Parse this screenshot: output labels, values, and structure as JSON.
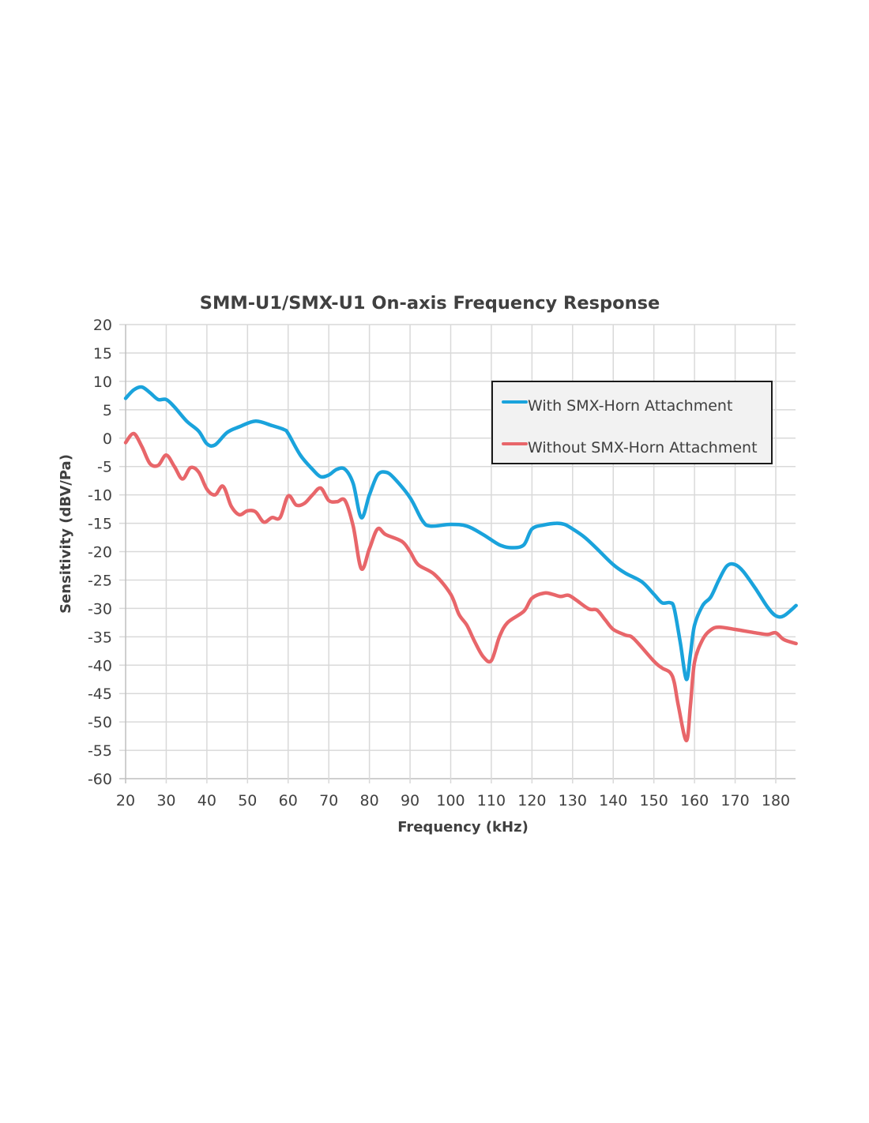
{
  "chart_data": {
    "type": "line",
    "title": "SMM-U1/SMX-U1  On-axis Frequency Response",
    "xlabel": "Frequency (kHz)",
    "ylabel": "Sensitivity (dBV/Pa)",
    "xlim": [
      20,
      185
    ],
    "ylim": [
      -60,
      20
    ],
    "xticks": [
      20,
      30,
      40,
      50,
      60,
      70,
      80,
      90,
      100,
      110,
      120,
      130,
      140,
      150,
      160,
      170,
      180
    ],
    "yticks": [
      20,
      15,
      10,
      5,
      0,
      -5,
      -10,
      -15,
      -20,
      -25,
      -30,
      -35,
      -40,
      -45,
      -50,
      -55,
      -60
    ],
    "grid": true,
    "legend_position": "top-right",
    "series": [
      {
        "name": "With SMX-Horn Attachment",
        "color": "#1aa3dc",
        "x": [
          20,
          22,
          24,
          26,
          28,
          30,
          32,
          35,
          38,
          40,
          42,
          45,
          48,
          52,
          56,
          59,
          60,
          63,
          66,
          68,
          70,
          72,
          74,
          76,
          78,
          80,
          82,
          84,
          86,
          90,
          93,
          95,
          100,
          104,
          108,
          112,
          115,
          118,
          120,
          123,
          126,
          128,
          130,
          133,
          136,
          140,
          143,
          147,
          150,
          152,
          154,
          155,
          156.5,
          158,
          159,
          160,
          162,
          164,
          166,
          168,
          170,
          172,
          175,
          178,
          180,
          182,
          185
        ],
        "y": [
          7,
          8.5,
          9,
          8,
          6.8,
          6.8,
          5.5,
          3,
          1.2,
          -1,
          -1.2,
          1,
          2,
          3,
          2.2,
          1.5,
          0.8,
          -3,
          -5.5,
          -6.8,
          -6.5,
          -5.5,
          -5.5,
          -8,
          -14,
          -10,
          -6.5,
          -6,
          -7,
          -10.5,
          -14.5,
          -15.5,
          -15.2,
          -15.5,
          -17,
          -18.8,
          -19.3,
          -18.8,
          -16,
          -15.3,
          -15,
          -15.2,
          -16,
          -17.5,
          -19.5,
          -22.3,
          -23.8,
          -25.3,
          -27.5,
          -29,
          -29,
          -30,
          -36,
          -42.5,
          -38,
          -33,
          -29.5,
          -28,
          -25,
          -22.5,
          -22.3,
          -23.5,
          -26.5,
          -29.8,
          -31.3,
          -31.3,
          -29.5
        ]
      },
      {
        "name": "Without SMX-Horn Attachment",
        "color": "#e8666a",
        "x": [
          20,
          22,
          24,
          26,
          28,
          30,
          32,
          34,
          36,
          38,
          40,
          42,
          44,
          46,
          48,
          50,
          52,
          54,
          56,
          58,
          60,
          62,
          64,
          66,
          68,
          70,
          72,
          74,
          76,
          78,
          80,
          82,
          84,
          88,
          90,
          92,
          96,
          100,
          102,
          104,
          106,
          108,
          110,
          112,
          114,
          118,
          120,
          123,
          125,
          127,
          129,
          131,
          134,
          136,
          138,
          140,
          143,
          145,
          150,
          152,
          154,
          155,
          156,
          158,
          159,
          160,
          162,
          164,
          166,
          170,
          175,
          178,
          180,
          182,
          185
        ],
        "y": [
          -0.8,
          0.8,
          -1.5,
          -4.5,
          -4.8,
          -3,
          -5,
          -7.2,
          -5.2,
          -6,
          -9,
          -10,
          -8.5,
          -12,
          -13.5,
          -12.8,
          -13,
          -14.8,
          -14,
          -14,
          -10.2,
          -11.8,
          -11.5,
          -10,
          -8.8,
          -11,
          -11.2,
          -11,
          -15.5,
          -23,
          -19.5,
          -16,
          -17,
          -18.2,
          -20,
          -22.3,
          -24,
          -27.5,
          -31,
          -33,
          -36,
          -38.5,
          -39.2,
          -35,
          -32.5,
          -30.5,
          -28.2,
          -27.3,
          -27.5,
          -27.9,
          -27.7,
          -28.6,
          -30.1,
          -30.3,
          -32,
          -33.7,
          -34.7,
          -35.3,
          -39.3,
          -40.5,
          -41.3,
          -43,
          -47,
          -53.3,
          -47,
          -39.5,
          -35.5,
          -33.8,
          -33.3,
          -33.7,
          -34.3,
          -34.6,
          -34.3,
          -35.5,
          -36.2
        ]
      }
    ]
  }
}
